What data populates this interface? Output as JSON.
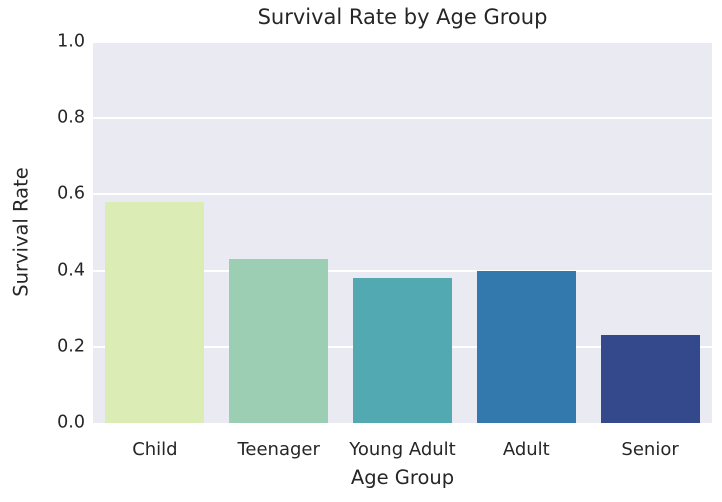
{
  "chart_data": {
    "type": "bar",
    "title": "Survival Rate by Age Group",
    "xlabel": "Age Group",
    "ylabel": "Survival Rate",
    "categories": [
      "Child",
      "Teenager",
      "Young Adult",
      "Adult",
      "Senior"
    ],
    "values": [
      0.58,
      0.43,
      0.38,
      0.4,
      0.23
    ],
    "ylim": [
      0.0,
      1.0
    ],
    "yticks": [
      "0.0",
      "0.2",
      "0.4",
      "0.6",
      "0.8",
      "1.0"
    ],
    "grid": "horizontal",
    "legend": "none",
    "bar_colors": [
      "#dcecb5",
      "#9cceb4",
      "#52a9b2",
      "#3379ad",
      "#34498c"
    ],
    "plot_background": "#eaeaf2",
    "gridline_color": "#ffffff",
    "text_color": "#262626"
  }
}
